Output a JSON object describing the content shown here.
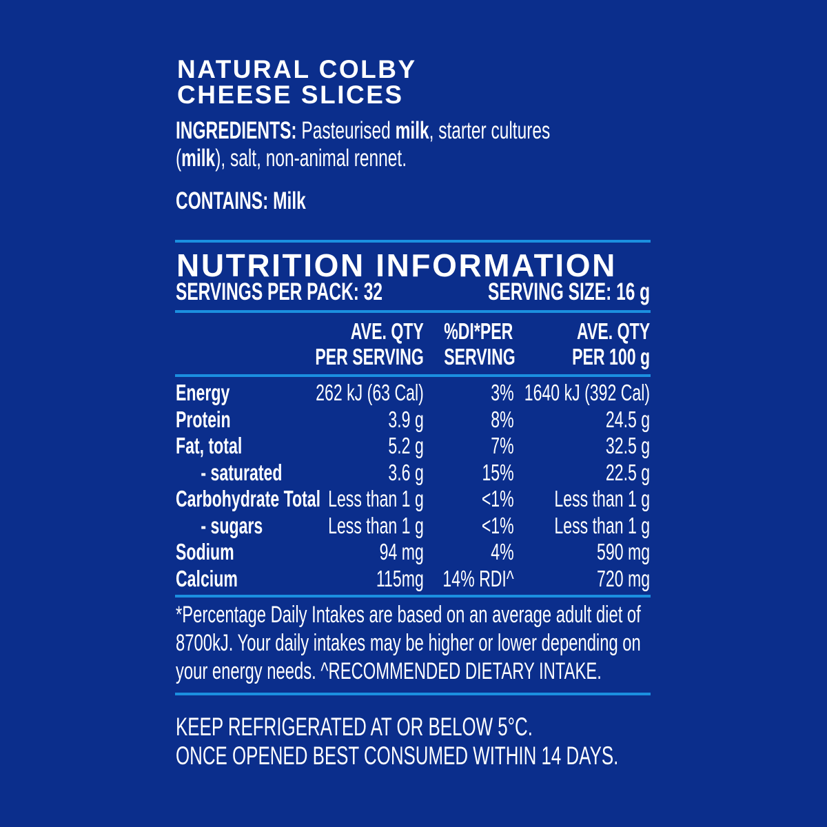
{
  "product": {
    "title_line1": "NATURAL COLBY",
    "title_line2": "CHEESE SLICES"
  },
  "ingredients": {
    "label": "INGREDIENTS:",
    "line1_parts": [
      " Pasteurised ",
      "milk",
      ", starter cultures"
    ],
    "line2_parts": [
      "(",
      "milk",
      "), salt, non-animal rennet."
    ]
  },
  "contains": {
    "label": "CONTAINS:",
    "value": " Milk"
  },
  "nutrition": {
    "heading": "NUTRITION INFORMATION",
    "servings_per_pack": "SERVINGS PER PACK: 32",
    "serving_size": "SERVING SIZE: 16 g",
    "columns": [
      [
        "AVE. QTY",
        "PER SERVING"
      ],
      [
        "%DI*PER",
        "SERVING"
      ],
      [
        "AVE. QTY",
        "PER 100 g"
      ]
    ],
    "rows": [
      {
        "label": "Energy",
        "per_serving": "262 kJ (63 Cal)",
        "di": "3%",
        "per_100g": "1640 kJ (392 Cal)",
        "indent": false
      },
      {
        "label": "Protein",
        "per_serving": "3.9 g",
        "di": "8%",
        "per_100g": "24.5 g",
        "indent": false
      },
      {
        "label": "Fat,  total",
        "per_serving": "5.2 g",
        "di": "7%",
        "per_100g": "32.5 g",
        "indent": false
      },
      {
        "label": "- saturated",
        "per_serving": "3.6 g",
        "di": "15%",
        "per_100g": "22.5 g",
        "indent": true
      },
      {
        "label": "Carbohydrate Total",
        "per_serving": "Less than 1 g",
        "di": "<1%",
        "per_100g": "Less than 1 g",
        "indent": false
      },
      {
        "label": "- sugars",
        "per_serving": "Less than 1 g",
        "di": "<1%",
        "per_100g": "Less than 1 g",
        "indent": true
      },
      {
        "label": "Sodium",
        "per_serving": "94 mg",
        "di": "4%",
        "per_100g": "590 mg",
        "indent": false
      },
      {
        "label": "Calcium",
        "per_serving": "115mg",
        "di": "14% RDI^",
        "per_100g": "720 mg",
        "indent": false
      }
    ],
    "footnote": [
      "*Percentage Daily Intakes are based on an average adult diet of",
      "8700kJ. Your daily intakes may be higher or lower depending on",
      "your energy needs. ^RECOMMENDED DIETARY INTAKE."
    ]
  },
  "storage": [
    "KEEP REFRIGERATED AT OR BELOW 5°C.",
    "ONCE OPENED BEST CONSUMED WITHIN 14 DAYS."
  ],
  "colors": {
    "background": "#0b2e8c",
    "rule": "#1b8fe0",
    "text": "#ffffff"
  }
}
